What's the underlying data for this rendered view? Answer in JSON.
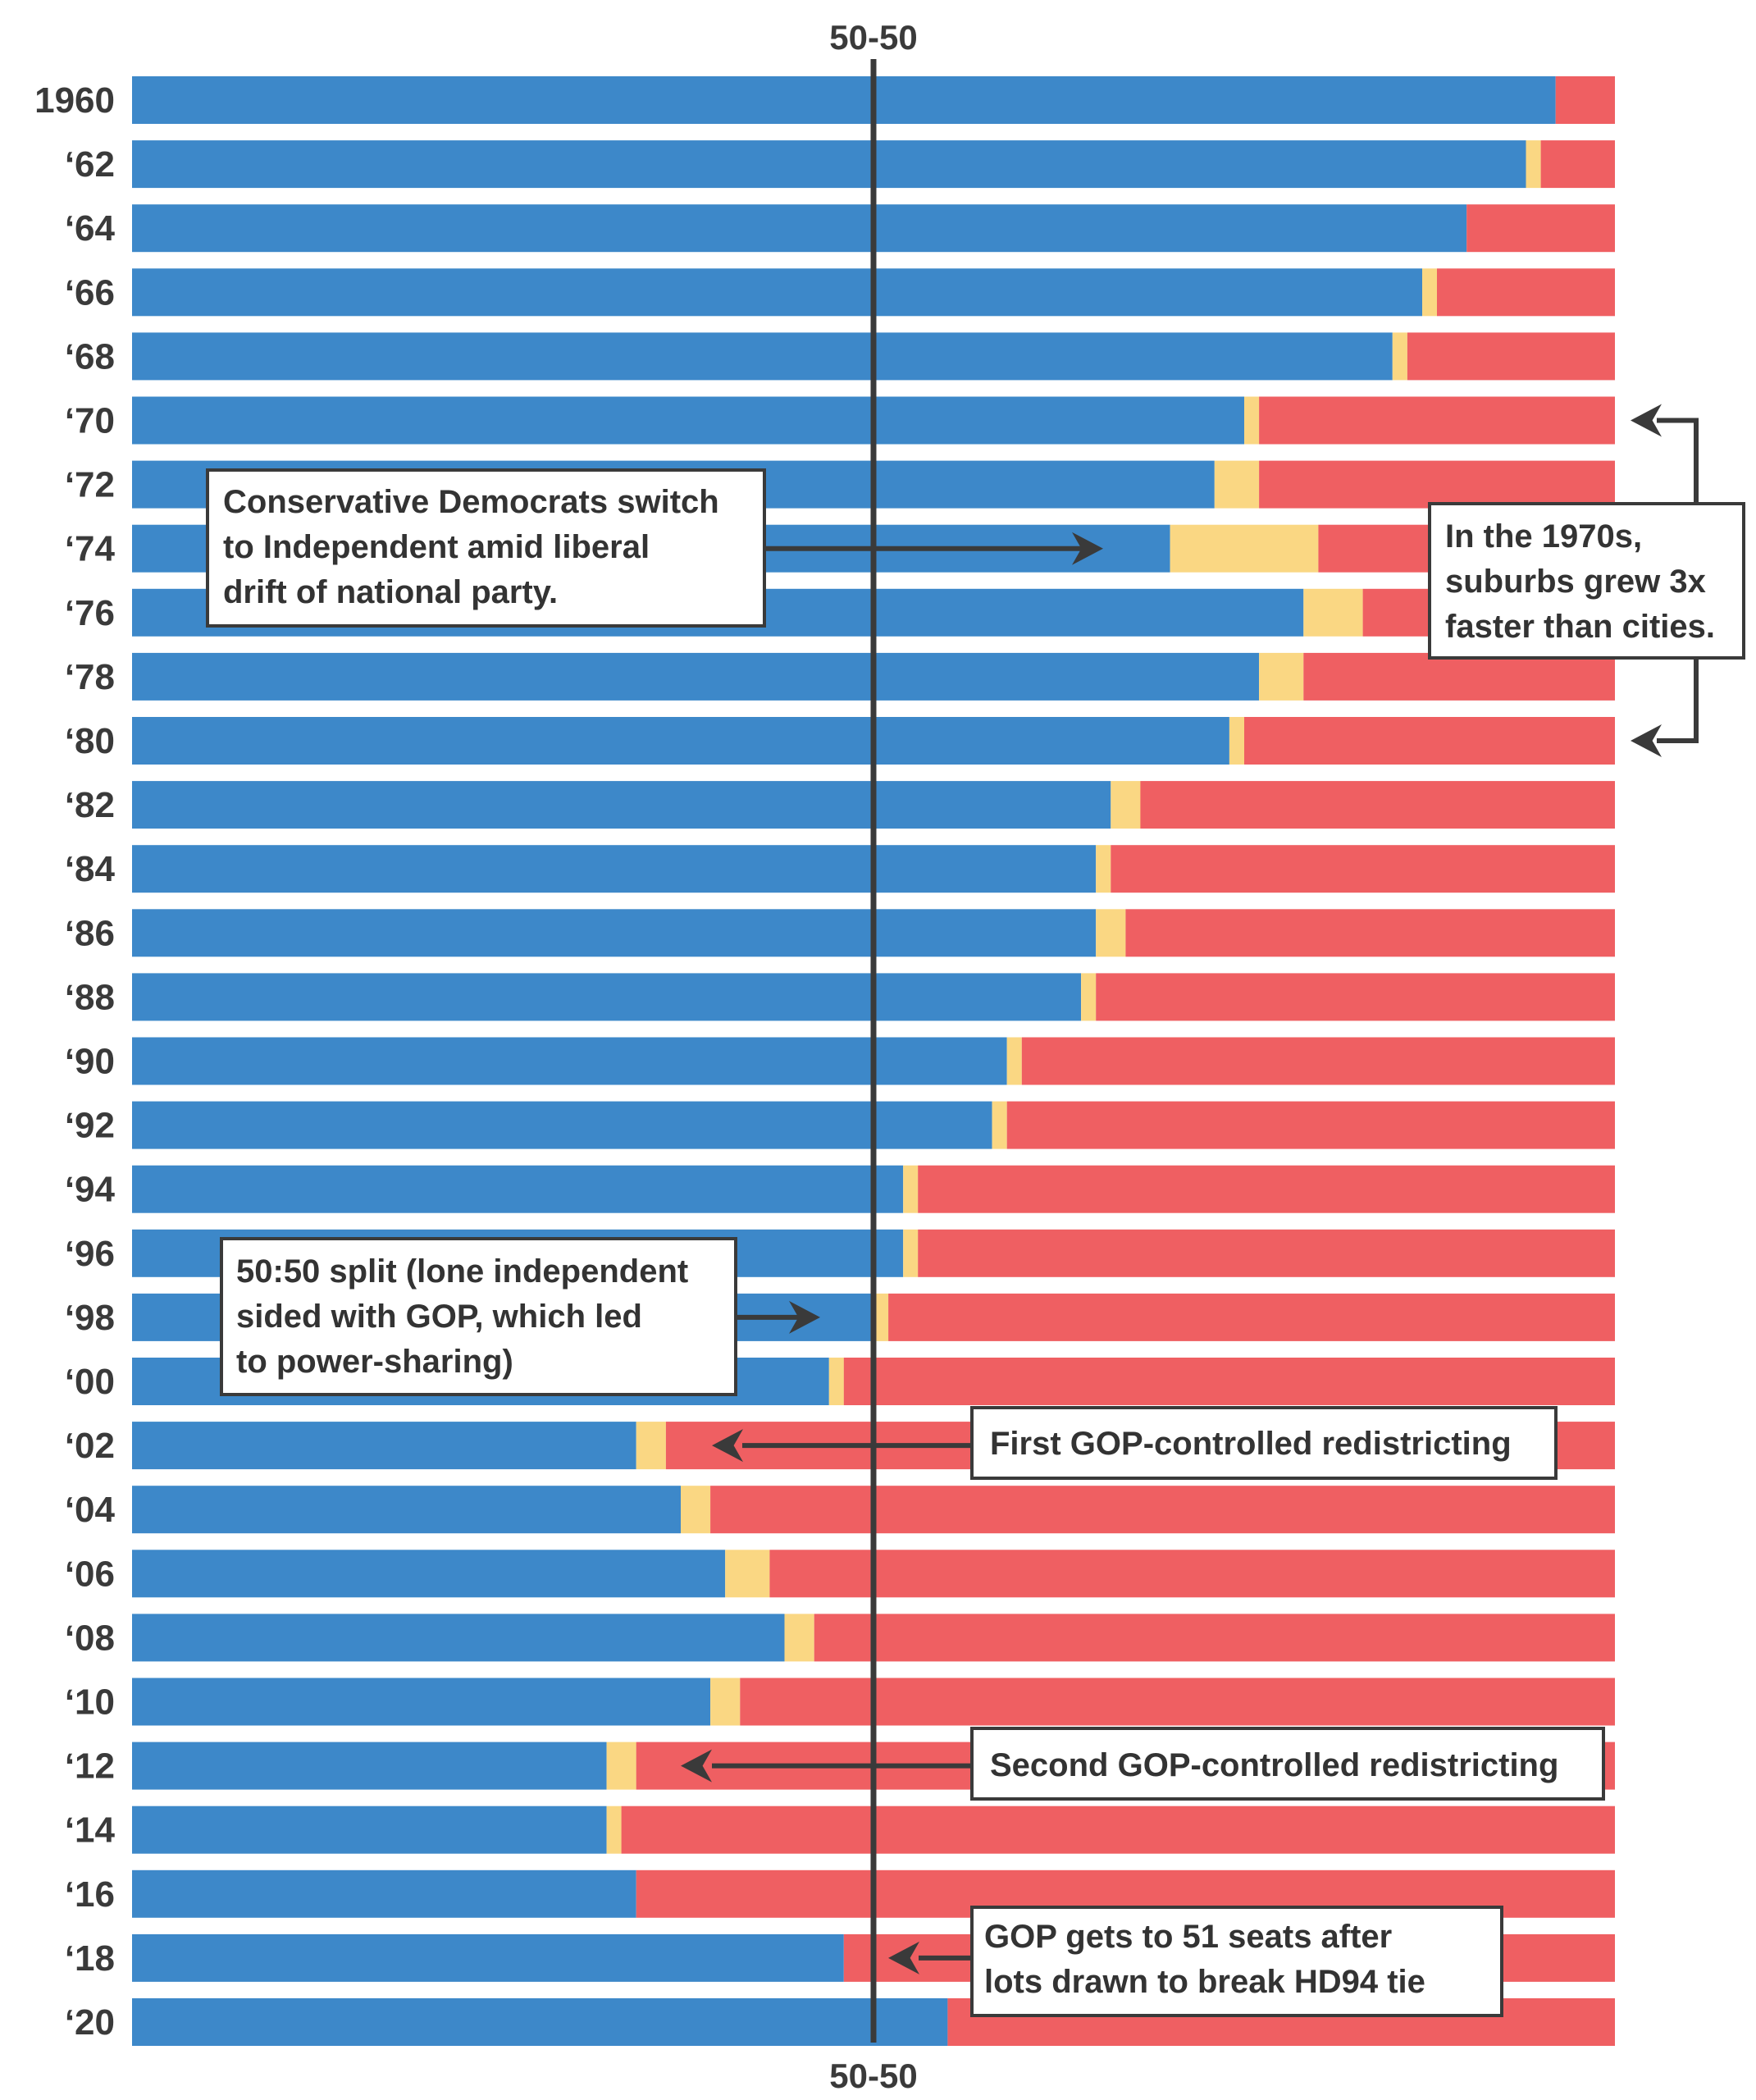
{
  "chart_data": {
    "type": "bar",
    "stacked": true,
    "orientation": "horizontal",
    "categories": [
      "1960",
      "‘62",
      "‘64",
      "‘66",
      "‘68",
      "‘70",
      "‘72",
      "‘74",
      "‘76",
      "‘78",
      "‘80",
      "‘82",
      "‘84",
      "‘86",
      "‘88",
      "‘90",
      "‘92",
      "‘94",
      "‘96",
      "‘98",
      "‘00",
      "‘02",
      "‘04",
      "‘06",
      "‘08",
      "‘10",
      "‘12",
      "‘14",
      "‘16",
      "‘18",
      "‘20"
    ],
    "series": [
      {
        "values": [
          96,
          94,
          90,
          87,
          85,
          75,
          73,
          70,
          79,
          76,
          74,
          66,
          65,
          65,
          64,
          59,
          58,
          52,
          52,
          50,
          47,
          34,
          37,
          40,
          44,
          39,
          32,
          32,
          34,
          48,
          55
        ]
      },
      {
        "values": [
          0,
          1,
          0,
          1,
          1,
          1,
          3,
          10,
          4,
          3,
          1,
          2,
          1,
          2,
          1,
          1,
          1,
          1,
          1,
          1,
          1,
          2,
          2,
          3,
          2,
          2,
          2,
          1,
          0,
          0,
          0
        ]
      },
      {
        "values": [
          4,
          5,
          10,
          12,
          14,
          24,
          24,
          20,
          17,
          21,
          25,
          32,
          34,
          33,
          35,
          40,
          41,
          47,
          47,
          49,
          52,
          64,
          61,
          57,
          54,
          59,
          66,
          67,
          66,
          52,
          45
        ]
      }
    ],
    "colors": [
      "#3d88c9",
      "#fad783",
      "#ef5f62"
    ],
    "xlim": [
      0,
      100
    ],
    "reference_line": {
      "value": 50,
      "label": "50-50"
    },
    "annotations": [
      {
        "lines": [
          "Conservative Democrats switch",
          "to Independent amid liberal",
          "drift of national party."
        ],
        "points_to": "‘74"
      },
      {
        "lines": [
          "In the 1970s,",
          "suburbs grew 3x",
          "faster than cities."
        ],
        "spans": [
          "‘70",
          "‘80"
        ]
      },
      {
        "lines": [
          "50:50 split (lone independent",
          "sided with GOP, which led",
          "to power-sharing)"
        ],
        "points_to": "‘98"
      },
      {
        "lines": [
          "First GOP-controlled redistricting"
        ],
        "points_to": "‘02"
      },
      {
        "lines": [
          "Second GOP-controlled redistricting"
        ],
        "points_to": "‘12"
      },
      {
        "lines": [
          "GOP gets to 51 seats after",
          "lots drawn to break HD94 tie"
        ],
        "points_to": "‘18"
      }
    ]
  }
}
